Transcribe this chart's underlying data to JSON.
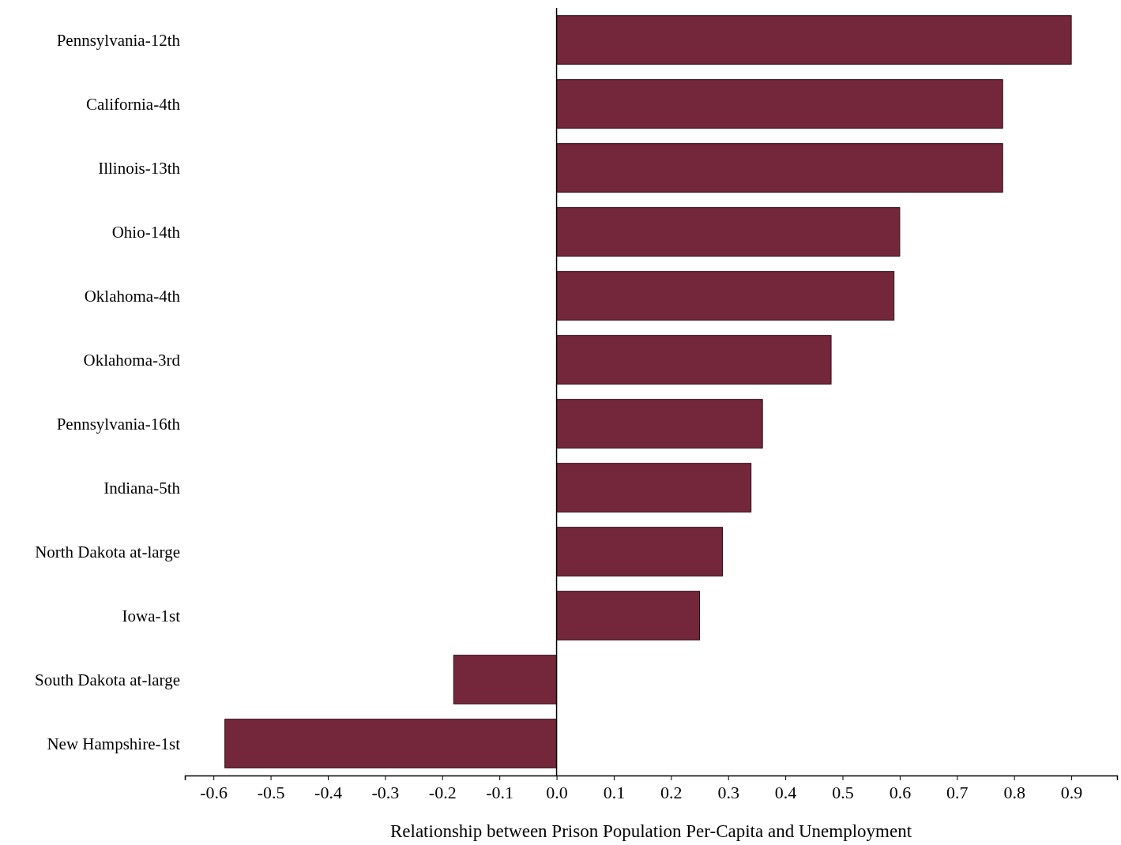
{
  "chart_data": {
    "type": "bar",
    "orientation": "horizontal",
    "xlabel": "Relationship between Prison Population Per-Capita and Unemployment",
    "categories": [
      "Pennsylvania-12th",
      "California-4th",
      "Illinois-13th",
      "Ohio-14th",
      "Oklahoma-4th",
      "Oklahoma-3rd",
      "Pennsylvania-16th",
      "Indiana-5th",
      "North Dakota at-large",
      "Iowa-1st",
      "South Dakota at-large",
      "New Hampshire-1st"
    ],
    "values": [
      0.9,
      0.78,
      0.78,
      0.6,
      0.59,
      0.48,
      0.36,
      0.34,
      0.29,
      0.25,
      -0.18,
      -0.58
    ],
    "color": "#74273b",
    "xlim": [
      -0.65,
      0.98
    ],
    "xticks": [
      {
        "value": -0.6,
        "label": "-0.6"
      },
      {
        "value": -0.5,
        "label": "-0.5"
      },
      {
        "value": -0.4,
        "label": "-0.4"
      },
      {
        "value": -0.3,
        "label": "-0.3"
      },
      {
        "value": -0.2,
        "label": "-0.2"
      },
      {
        "value": -0.1,
        "label": "-0.1"
      },
      {
        "value": 0,
        "label": "0.0"
      },
      {
        "value": 0.1,
        "label": "0.1"
      },
      {
        "value": 0.2,
        "label": "0.2"
      },
      {
        "value": 0.3,
        "label": "0.3"
      },
      {
        "value": 0.4,
        "label": "0.4"
      },
      {
        "value": 0.5,
        "label": "0.5"
      },
      {
        "value": 0.6,
        "label": "0.6"
      },
      {
        "value": 0.7,
        "label": "0.7"
      },
      {
        "value": 0.8,
        "label": "0.8"
      },
      {
        "value": 0.9,
        "label": "0.9"
      }
    ],
    "legend": false
  }
}
